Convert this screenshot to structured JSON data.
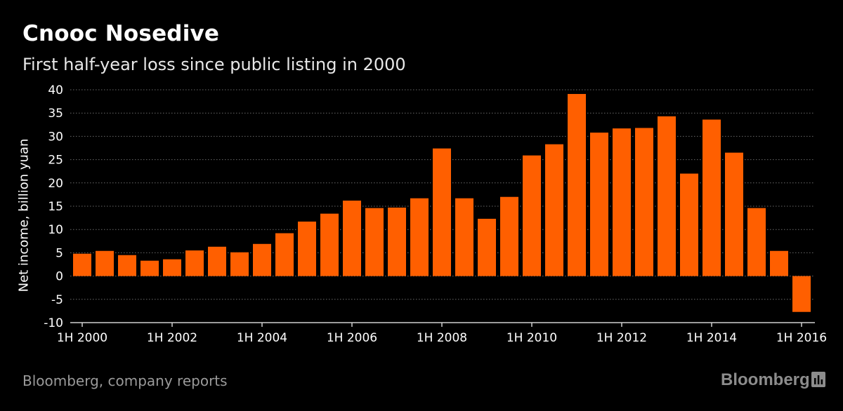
{
  "header": {
    "title": "Cnooc Nosedive",
    "subtitle": "First half-year loss since public listing in 2000"
  },
  "footer": {
    "source": "Bloomberg, company reports",
    "brand": "Bloomberg",
    "brand_icon": "bloomberg-terminal-icon"
  },
  "colors": {
    "bar": "#ff5f00",
    "background": "#000000",
    "grid": "#6a6a6a",
    "text": "#ffffff"
  },
  "chart_data": {
    "type": "bar",
    "title": "Cnooc Nosedive",
    "subtitle": "First half-year loss since public listing in 2000",
    "xlabel": "",
    "ylabel": "Net income, billion yuan",
    "ylim": [
      -10,
      40
    ],
    "yticks": [
      40,
      35,
      30,
      25,
      20,
      15,
      10,
      5,
      0,
      -5,
      -10
    ],
    "grid": true,
    "categories": [
      "1H 2000",
      "2H 2000",
      "1H 2001",
      "2H 2001",
      "1H 2002",
      "2H 2002",
      "1H 2003",
      "2H 2003",
      "1H 2004",
      "2H 2004",
      "1H 2005",
      "2H 2005",
      "1H 2006",
      "2H 2006",
      "1H 2007",
      "2H 2007",
      "1H 2008",
      "2H 2008",
      "1H 2009",
      "2H 2009",
      "1H 2010",
      "2H 2010",
      "1H 2011",
      "2H 2011",
      "1H 2012",
      "2H 2012",
      "1H 2013",
      "2H 2013",
      "1H 2014",
      "2H 2014",
      "1H 2015",
      "2H 2015",
      "1H 2016"
    ],
    "xtick_labels": [
      "1H 2000",
      "1H 2002",
      "1H 2004",
      "1H 2006",
      "1H 2008",
      "1H 2010",
      "1H 2012",
      "1H 2014",
      "1H 2016"
    ],
    "values": [
      4.8,
      5.4,
      4.5,
      3.3,
      3.6,
      5.5,
      6.3,
      5.1,
      6.9,
      9.2,
      11.7,
      13.4,
      16.2,
      14.6,
      14.7,
      16.7,
      27.4,
      16.7,
      12.3,
      17.0,
      25.9,
      28.3,
      39.1,
      30.8,
      31.7,
      31.8,
      34.3,
      22.0,
      33.6,
      26.5,
      14.6,
      5.4,
      -7.7
    ]
  }
}
